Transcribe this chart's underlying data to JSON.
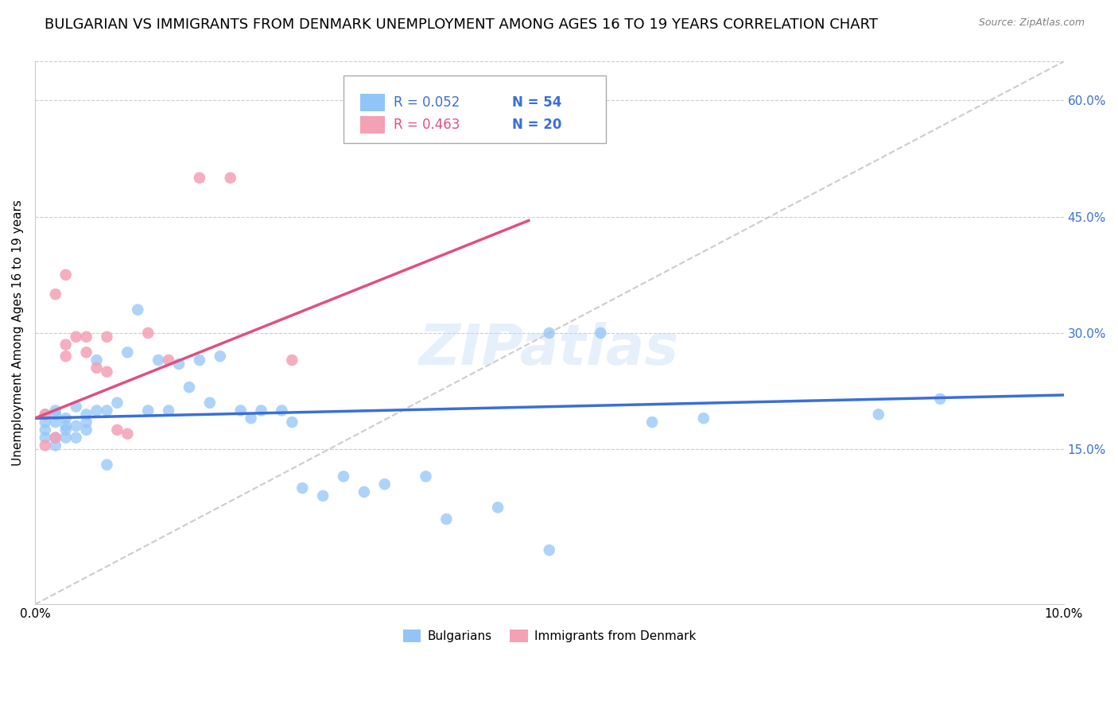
{
  "title": "BULGARIAN VS IMMIGRANTS FROM DENMARK UNEMPLOYMENT AMONG AGES 16 TO 19 YEARS CORRELATION CHART",
  "source": "Source: ZipAtlas.com",
  "ylabel": "Unemployment Among Ages 16 to 19 years",
  "xlim": [
    0.0,
    0.1
  ],
  "ylim": [
    -0.05,
    0.65
  ],
  "yticks": [
    0.15,
    0.3,
    0.45,
    0.6
  ],
  "ytick_labels": [
    "15.0%",
    "30.0%",
    "45.0%",
    "60.0%"
  ],
  "xticks": [
    0.0,
    0.02,
    0.04,
    0.06,
    0.08,
    0.1
  ],
  "xtick_labels": [
    "0.0%",
    "",
    "",
    "",
    "",
    "10.0%"
  ],
  "bulgarians": {
    "R": 0.052,
    "N": 54,
    "color": "#92c5f7",
    "label": "Bulgarians",
    "x": [
      0.001,
      0.001,
      0.001,
      0.001,
      0.002,
      0.002,
      0.002,
      0.002,
      0.002,
      0.003,
      0.003,
      0.003,
      0.003,
      0.004,
      0.004,
      0.004,
      0.005,
      0.005,
      0.005,
      0.006,
      0.006,
      0.007,
      0.007,
      0.008,
      0.009,
      0.01,
      0.011,
      0.012,
      0.013,
      0.014,
      0.015,
      0.016,
      0.017,
      0.018,
      0.02,
      0.021,
      0.022,
      0.024,
      0.025,
      0.026,
      0.028,
      0.03,
      0.032,
      0.034,
      0.038,
      0.04,
      0.045,
      0.05,
      0.055,
      0.06,
      0.065,
      0.082,
      0.088,
      0.05
    ],
    "y": [
      0.195,
      0.185,
      0.175,
      0.165,
      0.2,
      0.195,
      0.185,
      0.165,
      0.155,
      0.19,
      0.18,
      0.175,
      0.165,
      0.205,
      0.18,
      0.165,
      0.195,
      0.185,
      0.175,
      0.2,
      0.265,
      0.2,
      0.13,
      0.21,
      0.275,
      0.33,
      0.2,
      0.265,
      0.2,
      0.26,
      0.23,
      0.265,
      0.21,
      0.27,
      0.2,
      0.19,
      0.2,
      0.2,
      0.185,
      0.1,
      0.09,
      0.115,
      0.095,
      0.105,
      0.115,
      0.06,
      0.075,
      0.3,
      0.3,
      0.185,
      0.19,
      0.195,
      0.215,
      0.02
    ]
  },
  "immigrants": {
    "R": 0.463,
    "N": 20,
    "color": "#f4a0b5",
    "label": "Immigrants from Denmark",
    "x": [
      0.001,
      0.001,
      0.002,
      0.003,
      0.003,
      0.004,
      0.005,
      0.005,
      0.006,
      0.007,
      0.007,
      0.008,
      0.009,
      0.011,
      0.013,
      0.016,
      0.019,
      0.025,
      0.002,
      0.003
    ],
    "y": [
      0.195,
      0.155,
      0.35,
      0.375,
      0.27,
      0.295,
      0.275,
      0.295,
      0.255,
      0.25,
      0.295,
      0.175,
      0.17,
      0.3,
      0.265,
      0.5,
      0.5,
      0.265,
      0.165,
      0.285
    ]
  },
  "trend_blue": {
    "x": [
      0.0,
      0.1
    ],
    "y": [
      0.19,
      0.22
    ],
    "color": "#3a6fd8",
    "linewidth": 2.5
  },
  "trend_pink": {
    "x": [
      0.0,
      0.048
    ],
    "y": [
      0.19,
      0.445
    ],
    "color": "#e05080",
    "linewidth": 2.5
  },
  "diag_line": {
    "x": [
      0.0,
      0.1
    ],
    "y": [
      -0.05,
      0.65
    ],
    "color": "#cccccc",
    "linestyle": "--",
    "linewidth": 1.5
  },
  "legend_R_blue": "0.052",
  "legend_N_blue": "54",
  "legend_R_pink": "0.463",
  "legend_N_pink": "20",
  "legend_color_R_blue": "#3a6fd8",
  "legend_color_N_blue": "#3a6fd8",
  "legend_color_R_pink": "#e05080",
  "legend_color_N_pink": "#3a6fd8",
  "background_color": "#ffffff",
  "grid_color": "#cccccc",
  "title_fontsize": 13,
  "axis_label_fontsize": 11,
  "tick_fontsize": 11,
  "marker_size": 110
}
